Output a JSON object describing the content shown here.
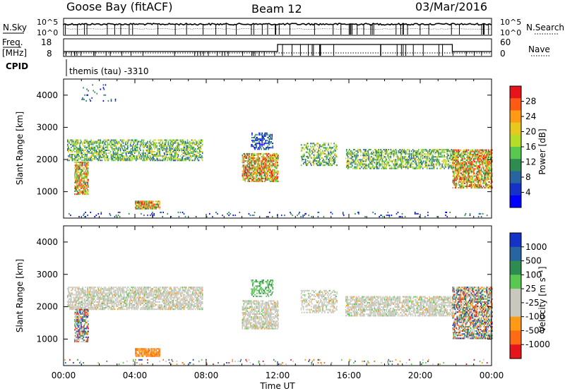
{
  "header": {
    "station": "Goose Bay (fitACF)",
    "beam": "Beam 12",
    "date": "03/Mar/2016"
  },
  "top_strips": {
    "nsky_label": "N.Sky",
    "nsky_ticks": [
      "10^5",
      "10^0"
    ],
    "nsearch_label": "N.Search",
    "nsearch_ticks": [
      "10^5",
      "10^0"
    ],
    "freq_label_1": "Freq.",
    "freq_label_2": "[MHz]",
    "freq_ticks": [
      "18",
      "8"
    ],
    "nave_label": "Nave",
    "nave_ticks": [
      "60",
      "0"
    ],
    "cpid_label": "CPID",
    "cpid_value": "themis (tau) -3310"
  },
  "colorbars": {
    "power": {
      "label": "Power [dB]",
      "ticks": [
        "28",
        "24",
        "20",
        "16",
        "12",
        "8",
        "4"
      ],
      "colors": [
        "#e8141c",
        "#ff5a14",
        "#ff9a14",
        "#e6c81e",
        "#b4dc28",
        "#5ac850",
        "#2e8c50",
        "#2864a0",
        "#1432c8",
        "#0000ff"
      ]
    },
    "velocity": {
      "label": "Velocity [m s⁻¹]",
      "ticks": [
        "1000",
        "500",
        "100",
        "25",
        "-25",
        "-100",
        "-500",
        "-1000"
      ],
      "colors": [
        "#1432c8",
        "#2864a0",
        "#2e8c50",
        "#5ac850",
        "#c8c8be",
        "#c8c8be",
        "#ff9a14",
        "#ff6a14",
        "#e8141c"
      ]
    }
  },
  "chart_data": [
    {
      "type": "heatmap",
      "title": "Power",
      "ylabel": "Slant Range [km]",
      "xlabel": "",
      "xlim": [
        0,
        24
      ],
      "ylim": [
        180,
        4500
      ],
      "yticks": [
        1000,
        2000,
        3000,
        4000
      ],
      "scale_label": "Power [dB]",
      "regions": [
        {
          "t": [
            0.2,
            7.8
          ],
          "r": [
            1950,
            2600
          ],
          "density": 0.45,
          "level": "mid"
        },
        {
          "t": [
            0.6,
            1.4
          ],
          "r": [
            900,
            1900
          ],
          "density": 0.6,
          "level": "high"
        },
        {
          "t": [
            4.0,
            5.4
          ],
          "r": [
            450,
            700
          ],
          "density": 0.7,
          "level": "high"
        },
        {
          "t": [
            10.0,
            12.0
          ],
          "r": [
            1300,
            2200
          ],
          "density": 0.6,
          "level": "high"
        },
        {
          "t": [
            10.5,
            11.7
          ],
          "r": [
            2300,
            2800
          ],
          "density": 0.4,
          "level": "low"
        },
        {
          "t": [
            13.3,
            15.3
          ],
          "r": [
            1800,
            2500
          ],
          "density": 0.35,
          "level": "mid"
        },
        {
          "t": [
            15.8,
            21.8
          ],
          "r": [
            1700,
            2300
          ],
          "density": 0.45,
          "level": "mid"
        },
        {
          "t": [
            21.8,
            24.0
          ],
          "r": [
            1100,
            2300
          ],
          "density": 0.6,
          "level": "high"
        },
        {
          "t": [
            0.0,
            24.0
          ],
          "r": [
            200,
            350
          ],
          "density": 0.06,
          "level": "low"
        },
        {
          "t": [
            1.0,
            3.0
          ],
          "r": [
            3800,
            4300
          ],
          "density": 0.05,
          "level": "low"
        }
      ]
    },
    {
      "type": "heatmap",
      "title": "Velocity",
      "ylabel": "Slant Range [km]",
      "xlabel": "Time UT",
      "xlim": [
        0,
        24
      ],
      "ylim": [
        180,
        4500
      ],
      "yticks": [
        1000,
        2000,
        3000,
        4000
      ],
      "xticks": [
        "00:00",
        "04:00",
        "08:00",
        "12:00",
        "16:00",
        "20:00",
        "00:00"
      ],
      "scale_label": "Velocity [m s⁻¹]",
      "regions": [
        {
          "t": [
            0.2,
            7.8
          ],
          "r": [
            1900,
            2600
          ],
          "density": 0.55,
          "level": "grey"
        },
        {
          "t": [
            0.6,
            1.4
          ],
          "r": [
            900,
            1900
          ],
          "density": 0.55,
          "level": "mixed"
        },
        {
          "t": [
            4.0,
            5.4
          ],
          "r": [
            450,
            700
          ],
          "density": 0.7,
          "level": "orange"
        },
        {
          "t": [
            10.0,
            12.0
          ],
          "r": [
            1300,
            2200
          ],
          "density": 0.55,
          "level": "grey"
        },
        {
          "t": [
            10.5,
            11.7
          ],
          "r": [
            2300,
            2800
          ],
          "density": 0.35,
          "level": "green"
        },
        {
          "t": [
            13.3,
            15.3
          ],
          "r": [
            1800,
            2500
          ],
          "density": 0.35,
          "level": "grey"
        },
        {
          "t": [
            15.8,
            21.8
          ],
          "r": [
            1700,
            2300
          ],
          "density": 0.55,
          "level": "grey"
        },
        {
          "t": [
            21.8,
            24.0
          ],
          "r": [
            1000,
            2600
          ],
          "density": 0.55,
          "level": "mixed"
        },
        {
          "t": [
            0.0,
            24.0
          ],
          "r": [
            200,
            350
          ],
          "density": 0.05,
          "level": "mixed"
        }
      ]
    }
  ]
}
